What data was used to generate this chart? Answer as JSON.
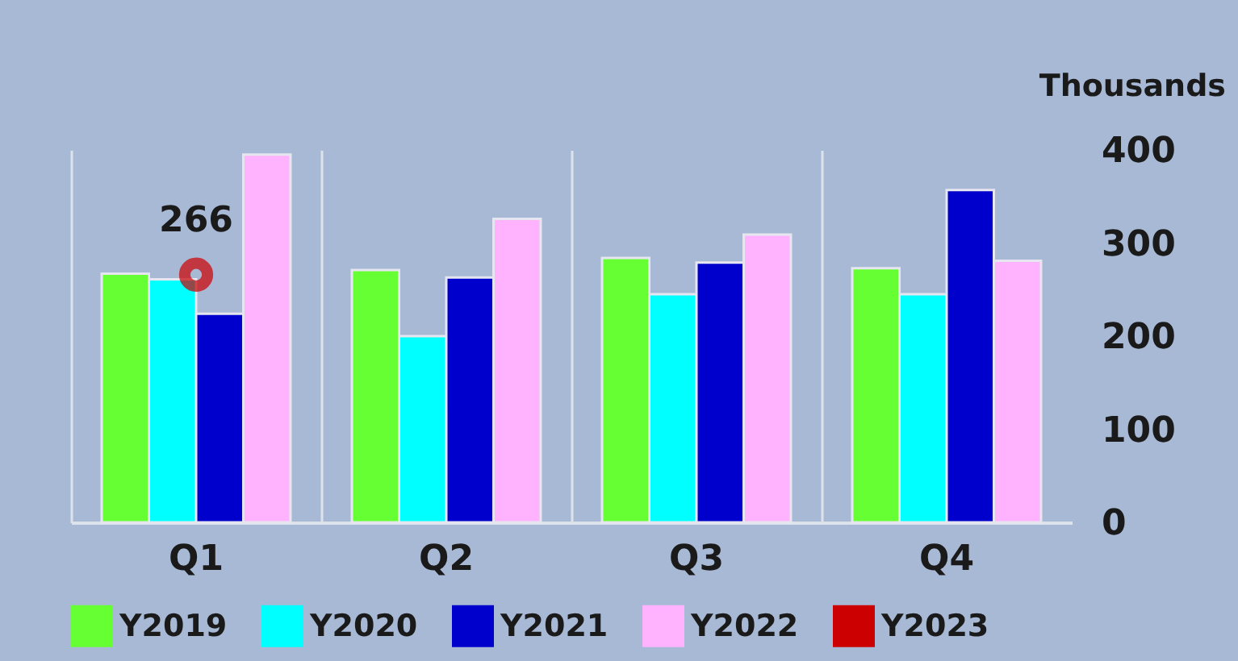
{
  "chart_data": {
    "type": "bar",
    "ylabel": "Thousands",
    "categories": [
      "Q1",
      "Q2",
      "Q3",
      "Q4"
    ],
    "series": [
      {
        "name": "Y2019",
        "color": "#66ff33",
        "values": [
          267,
          271,
          284,
          273
        ]
      },
      {
        "name": "Y2020",
        "color": "#00ffff",
        "values": [
          261,
          200,
          245,
          245
        ]
      },
      {
        "name": "Y2021",
        "color": "#0000cc",
        "values": [
          224,
          263,
          279,
          357
        ]
      },
      {
        "name": "Y2022",
        "color": "#ffb3ff",
        "values": [
          395,
          326,
          309,
          281
        ]
      },
      {
        "name": "Y2023",
        "type": "line",
        "color": "#cc0000",
        "marker": "circle",
        "values": [
          266,
          null,
          null,
          null
        ],
        "value_labels": [
          "266",
          null,
          null,
          null
        ]
      }
    ],
    "ylim": [
      0,
      400
    ],
    "yticks": [
      0,
      100,
      200,
      300,
      400
    ],
    "grid": "x",
    "legend": "bottom"
  }
}
